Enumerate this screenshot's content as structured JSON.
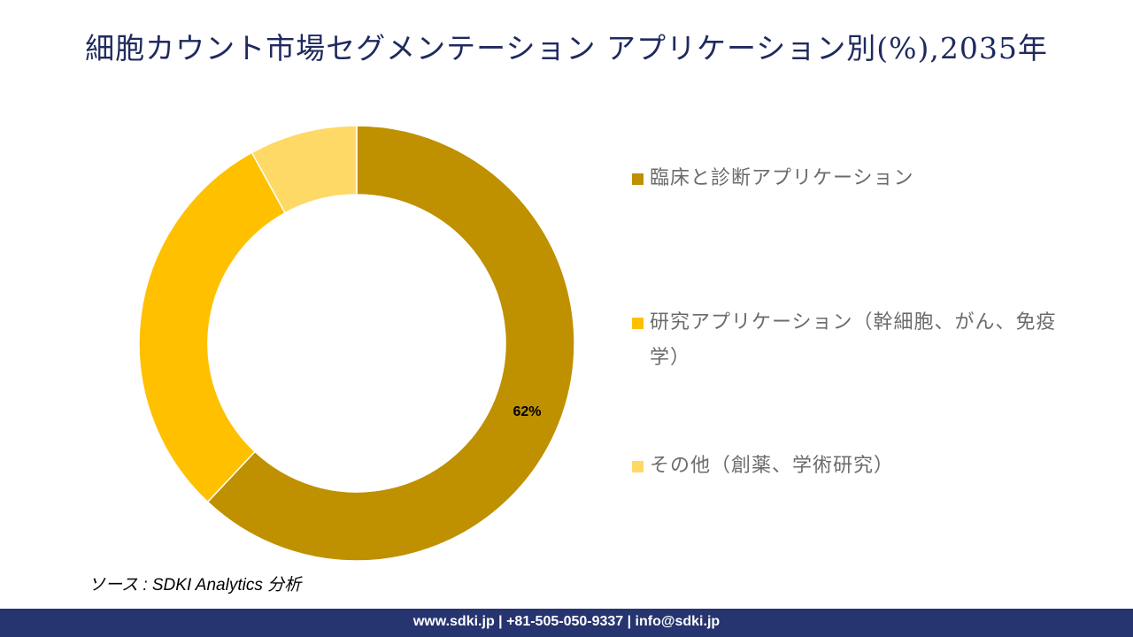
{
  "title": "細胞カウント市場セグメンテーション アプリケーション別(%),2035年",
  "chart_data": {
    "type": "pie",
    "subtype": "donut",
    "title": "細胞カウント市場セグメンテーション アプリケーション別(%),2035年",
    "categories": [
      "臨床と診断アプリケーション",
      "研究アプリケーション（幹細胞、がん、免疫学）",
      "その他（創薬、学術研究）"
    ],
    "values": [
      62,
      30,
      8
    ],
    "data_labels": [
      "62%",
      "",
      ""
    ],
    "colors": [
      "#BF9000",
      "#FFC000",
      "#FFD966"
    ],
    "start_angle": "top, clockwise",
    "legend_position": "right"
  },
  "source": "ソース : SDKI Analytics 分析",
  "footer": "www.sdki.jp | +81-505-050-9337 | info@sdki.jp"
}
